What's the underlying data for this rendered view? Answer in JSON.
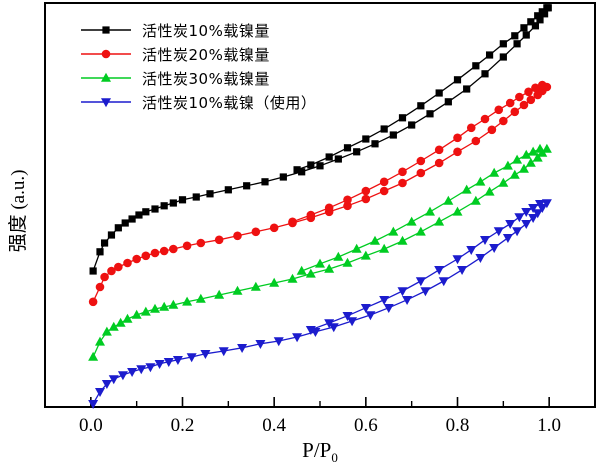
{
  "figure": {
    "background": "#ffffff",
    "frame_color": "#000000"
  },
  "chart_data": {
    "type": "line",
    "title": "",
    "xlabel": {
      "base": "P/P",
      "sub": "0"
    },
    "ylabel": "强度 (a.u.)",
    "xlim": [
      -0.1,
      1.1
    ],
    "ylim": [
      0,
      1
    ],
    "y_units": "arbitrary units (a.u.), no y tick labels shown",
    "grid": false,
    "legend_position": "top-left",
    "x_tick_labels": [
      "0.0",
      "0.2",
      "0.4",
      "0.6",
      "0.8",
      "1.0"
    ],
    "x_major_ticks": [
      0.0,
      0.2,
      0.4,
      0.6,
      0.8,
      1.0
    ],
    "x_minor_ticks": [
      0.1,
      0.3,
      0.5,
      0.7,
      0.9
    ],
    "series": [
      {
        "name": "活性炭10%载镍量",
        "color": "#000000",
        "marker": "square",
        "branches": {
          "adsorption": [
            [
              0.005,
              0.34
            ],
            [
              0.02,
              0.388
            ],
            [
              0.03,
              0.41
            ],
            [
              0.045,
              0.43
            ],
            [
              0.06,
              0.448
            ],
            [
              0.075,
              0.46
            ],
            [
              0.09,
              0.47
            ],
            [
              0.105,
              0.48
            ],
            [
              0.12,
              0.488
            ],
            [
              0.14,
              0.495
            ],
            [
              0.16,
              0.503
            ],
            [
              0.18,
              0.51
            ],
            [
              0.2,
              0.518
            ],
            [
              0.23,
              0.525
            ],
            [
              0.26,
              0.533
            ],
            [
              0.3,
              0.543
            ],
            [
              0.34,
              0.553
            ],
            [
              0.38,
              0.563
            ],
            [
              0.42,
              0.575
            ],
            [
              0.46,
              0.588
            ],
            [
              0.5,
              0.603
            ],
            [
              0.54,
              0.62
            ],
            [
              0.58,
              0.638
            ],
            [
              0.62,
              0.658
            ],
            [
              0.66,
              0.68
            ],
            [
              0.7,
              0.705
            ],
            [
              0.74,
              0.733
            ],
            [
              0.78,
              0.763
            ],
            [
              0.82,
              0.795
            ],
            [
              0.86,
              0.833
            ],
            [
              0.9,
              0.875
            ],
            [
              0.93,
              0.908
            ],
            [
              0.95,
              0.93
            ],
            [
              0.97,
              0.953
            ],
            [
              0.98,
              0.968
            ],
            [
              0.99,
              0.983
            ],
            [
              0.998,
              0.998
            ]
          ],
          "desorption": [
            [
              0.45,
              0.593
            ],
            [
              0.48,
              0.605
            ],
            [
              0.52,
              0.625
            ],
            [
              0.56,
              0.648
            ],
            [
              0.6,
              0.67
            ],
            [
              0.64,
              0.695
            ],
            [
              0.68,
              0.723
            ],
            [
              0.72,
              0.753
            ],
            [
              0.76,
              0.785
            ],
            [
              0.8,
              0.818
            ],
            [
              0.84,
              0.853
            ],
            [
              0.87,
              0.88
            ],
            [
              0.9,
              0.908
            ],
            [
              0.925,
              0.928
            ],
            [
              0.945,
              0.948
            ],
            [
              0.96,
              0.963
            ],
            [
              0.975,
              0.978
            ],
            [
              0.985,
              0.988
            ],
            [
              0.995,
              0.998
            ]
          ]
        }
      },
      {
        "name": "活性炭20%载镍量",
        "color": "#ee1111",
        "marker": "circle",
        "branches": {
          "adsorption": [
            [
              0.005,
              0.263
            ],
            [
              0.02,
              0.3
            ],
            [
              0.03,
              0.325
            ],
            [
              0.045,
              0.34
            ],
            [
              0.06,
              0.35
            ],
            [
              0.08,
              0.36
            ],
            [
              0.1,
              0.37
            ],
            [
              0.12,
              0.378
            ],
            [
              0.14,
              0.385
            ],
            [
              0.16,
              0.39
            ],
            [
              0.18,
              0.395
            ],
            [
              0.21,
              0.403
            ],
            [
              0.24,
              0.41
            ],
            [
              0.28,
              0.418
            ],
            [
              0.32,
              0.428
            ],
            [
              0.36,
              0.438
            ],
            [
              0.4,
              0.448
            ],
            [
              0.44,
              0.46
            ],
            [
              0.48,
              0.473
            ],
            [
              0.52,
              0.488
            ],
            [
              0.56,
              0.503
            ],
            [
              0.6,
              0.52
            ],
            [
              0.64,
              0.54
            ],
            [
              0.68,
              0.56
            ],
            [
              0.72,
              0.585
            ],
            [
              0.76,
              0.61
            ],
            [
              0.8,
              0.638
            ],
            [
              0.84,
              0.665
            ],
            [
              0.875,
              0.693
            ],
            [
              0.9,
              0.715
            ],
            [
              0.925,
              0.738
            ],
            [
              0.945,
              0.755
            ],
            [
              0.96,
              0.768
            ],
            [
              0.975,
              0.78
            ],
            [
              0.985,
              0.79
            ],
            [
              0.995,
              0.8
            ]
          ],
          "desorption": [
            [
              0.44,
              0.463
            ],
            [
              0.48,
              0.48
            ],
            [
              0.52,
              0.498
            ],
            [
              0.56,
              0.518
            ],
            [
              0.6,
              0.54
            ],
            [
              0.64,
              0.563
            ],
            [
              0.68,
              0.588
            ],
            [
              0.72,
              0.615
            ],
            [
              0.76,
              0.643
            ],
            [
              0.8,
              0.673
            ],
            [
              0.83,
              0.698
            ],
            [
              0.86,
              0.72
            ],
            [
              0.89,
              0.743
            ],
            [
              0.915,
              0.76
            ],
            [
              0.935,
              0.775
            ],
            [
              0.955,
              0.788
            ],
            [
              0.97,
              0.798
            ],
            [
              0.985,
              0.805
            ]
          ]
        }
      },
      {
        "name": "活性炭30%载镍量",
        "color": "#00cc22",
        "marker": "triangle-up",
        "branches": {
          "adsorption": [
            [
              0.005,
              0.125
            ],
            [
              0.02,
              0.163
            ],
            [
              0.035,
              0.188
            ],
            [
              0.05,
              0.2
            ],
            [
              0.065,
              0.21
            ],
            [
              0.08,
              0.22
            ],
            [
              0.1,
              0.23
            ],
            [
              0.12,
              0.238
            ],
            [
              0.14,
              0.245
            ],
            [
              0.16,
              0.25
            ],
            [
              0.18,
              0.255
            ],
            [
              0.21,
              0.263
            ],
            [
              0.24,
              0.27
            ],
            [
              0.28,
              0.28
            ],
            [
              0.32,
              0.29
            ],
            [
              0.36,
              0.3
            ],
            [
              0.4,
              0.31
            ],
            [
              0.44,
              0.32
            ],
            [
              0.48,
              0.333
            ],
            [
              0.52,
              0.345
            ],
            [
              0.56,
              0.36
            ],
            [
              0.6,
              0.378
            ],
            [
              0.64,
              0.395
            ],
            [
              0.68,
              0.415
            ],
            [
              0.72,
              0.438
            ],
            [
              0.76,
              0.463
            ],
            [
              0.8,
              0.488
            ],
            [
              0.84,
              0.515
            ],
            [
              0.87,
              0.538
            ],
            [
              0.9,
              0.56
            ],
            [
              0.925,
              0.58
            ],
            [
              0.945,
              0.595
            ],
            [
              0.96,
              0.61
            ],
            [
              0.975,
              0.623
            ],
            [
              0.985,
              0.635
            ],
            [
              0.995,
              0.645
            ]
          ],
          "desorption": [
            [
              0.46,
              0.34
            ],
            [
              0.5,
              0.358
            ],
            [
              0.54,
              0.375
            ],
            [
              0.58,
              0.395
            ],
            [
              0.62,
              0.415
            ],
            [
              0.66,
              0.438
            ],
            [
              0.7,
              0.463
            ],
            [
              0.74,
              0.488
            ],
            [
              0.78,
              0.515
            ],
            [
              0.82,
              0.543
            ],
            [
              0.85,
              0.563
            ],
            [
              0.88,
              0.585
            ],
            [
              0.91,
              0.603
            ],
            [
              0.93,
              0.618
            ],
            [
              0.95,
              0.63
            ],
            [
              0.965,
              0.638
            ],
            [
              0.98,
              0.645
            ]
          ]
        }
      },
      {
        "name": "活性炭10%载镍（使用）",
        "color": "#1c1ccd",
        "marker": "triangle-down",
        "branches": {
          "adsorption": [
            [
              0.005,
              0.008
            ],
            [
              0.02,
              0.038
            ],
            [
              0.035,
              0.058
            ],
            [
              0.05,
              0.07
            ],
            [
              0.07,
              0.08
            ],
            [
              0.09,
              0.088
            ],
            [
              0.11,
              0.095
            ],
            [
              0.13,
              0.1
            ],
            [
              0.15,
              0.108
            ],
            [
              0.17,
              0.113
            ],
            [
              0.19,
              0.118
            ],
            [
              0.22,
              0.125
            ],
            [
              0.25,
              0.133
            ],
            [
              0.29,
              0.14
            ],
            [
              0.33,
              0.148
            ],
            [
              0.37,
              0.158
            ],
            [
              0.41,
              0.165
            ],
            [
              0.45,
              0.175
            ],
            [
              0.49,
              0.188
            ],
            [
              0.53,
              0.2
            ],
            [
              0.57,
              0.215
            ],
            [
              0.61,
              0.23
            ],
            [
              0.65,
              0.248
            ],
            [
              0.69,
              0.268
            ],
            [
              0.73,
              0.29
            ],
            [
              0.77,
              0.315
            ],
            [
              0.81,
              0.343
            ],
            [
              0.85,
              0.373
            ],
            [
              0.88,
              0.398
            ],
            [
              0.91,
              0.423
            ],
            [
              0.93,
              0.44
            ],
            [
              0.95,
              0.458
            ],
            [
              0.965,
              0.473
            ],
            [
              0.975,
              0.485
            ],
            [
              0.985,
              0.498
            ],
            [
              0.995,
              0.51
            ]
          ],
          "desorption": [
            [
              0.48,
              0.193
            ],
            [
              0.52,
              0.21
            ],
            [
              0.56,
              0.228
            ],
            [
              0.6,
              0.248
            ],
            [
              0.64,
              0.268
            ],
            [
              0.68,
              0.29
            ],
            [
              0.72,
              0.315
            ],
            [
              0.76,
              0.343
            ],
            [
              0.8,
              0.37
            ],
            [
              0.83,
              0.393
            ],
            [
              0.86,
              0.418
            ],
            [
              0.89,
              0.44
            ],
            [
              0.915,
              0.458
            ],
            [
              0.935,
              0.475
            ],
            [
              0.95,
              0.488
            ],
            [
              0.965,
              0.498
            ],
            [
              0.98,
              0.508
            ]
          ]
        }
      }
    ]
  }
}
